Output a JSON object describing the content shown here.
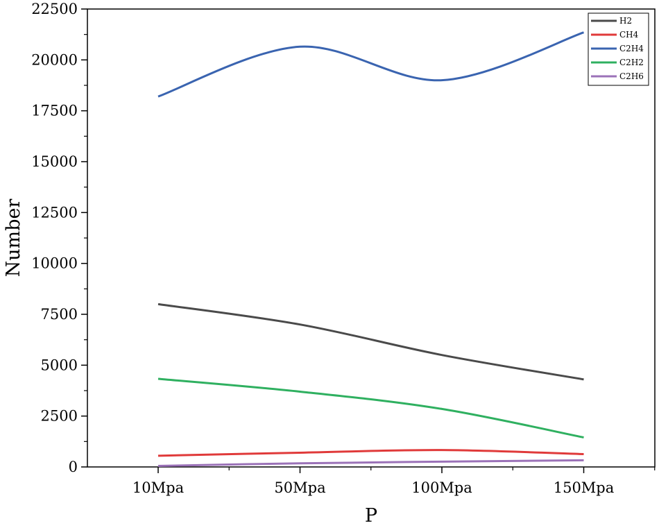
{
  "chart_data": {
    "type": "line",
    "title": "",
    "xlabel": "P",
    "ylabel": "Number",
    "categories": [
      "10Mpa",
      "50Mpa",
      "100Mpa",
      "150Mpa"
    ],
    "ylim": [
      0,
      22500
    ],
    "yticks": [
      0,
      2500,
      5000,
      7500,
      10000,
      12500,
      15000,
      17500,
      20000,
      22500
    ],
    "ytick_labels": [
      "0",
      "2500",
      "5000",
      "7500",
      "10000",
      "12500",
      "15000",
      "17500",
      "20000",
      "22500"
    ],
    "legend_position": "top-right",
    "grid": false,
    "series": [
      {
        "name": "H2",
        "color": "#4a4a4a",
        "values": [
          8000,
          7000,
          5500,
          4300
        ]
      },
      {
        "name": "CH4",
        "color": "#e03a3a",
        "values": [
          550,
          700,
          830,
          630
        ]
      },
      {
        "name": "C2H4",
        "color": "#3a64b0",
        "values": [
          18200,
          20650,
          19000,
          21350
        ]
      },
      {
        "name": "C2H2",
        "color": "#2fb060",
        "values": [
          4330,
          3700,
          2850,
          1450
        ]
      },
      {
        "name": "C2H6",
        "color": "#9b72b8",
        "values": [
          50,
          180,
          260,
          330
        ]
      }
    ]
  }
}
